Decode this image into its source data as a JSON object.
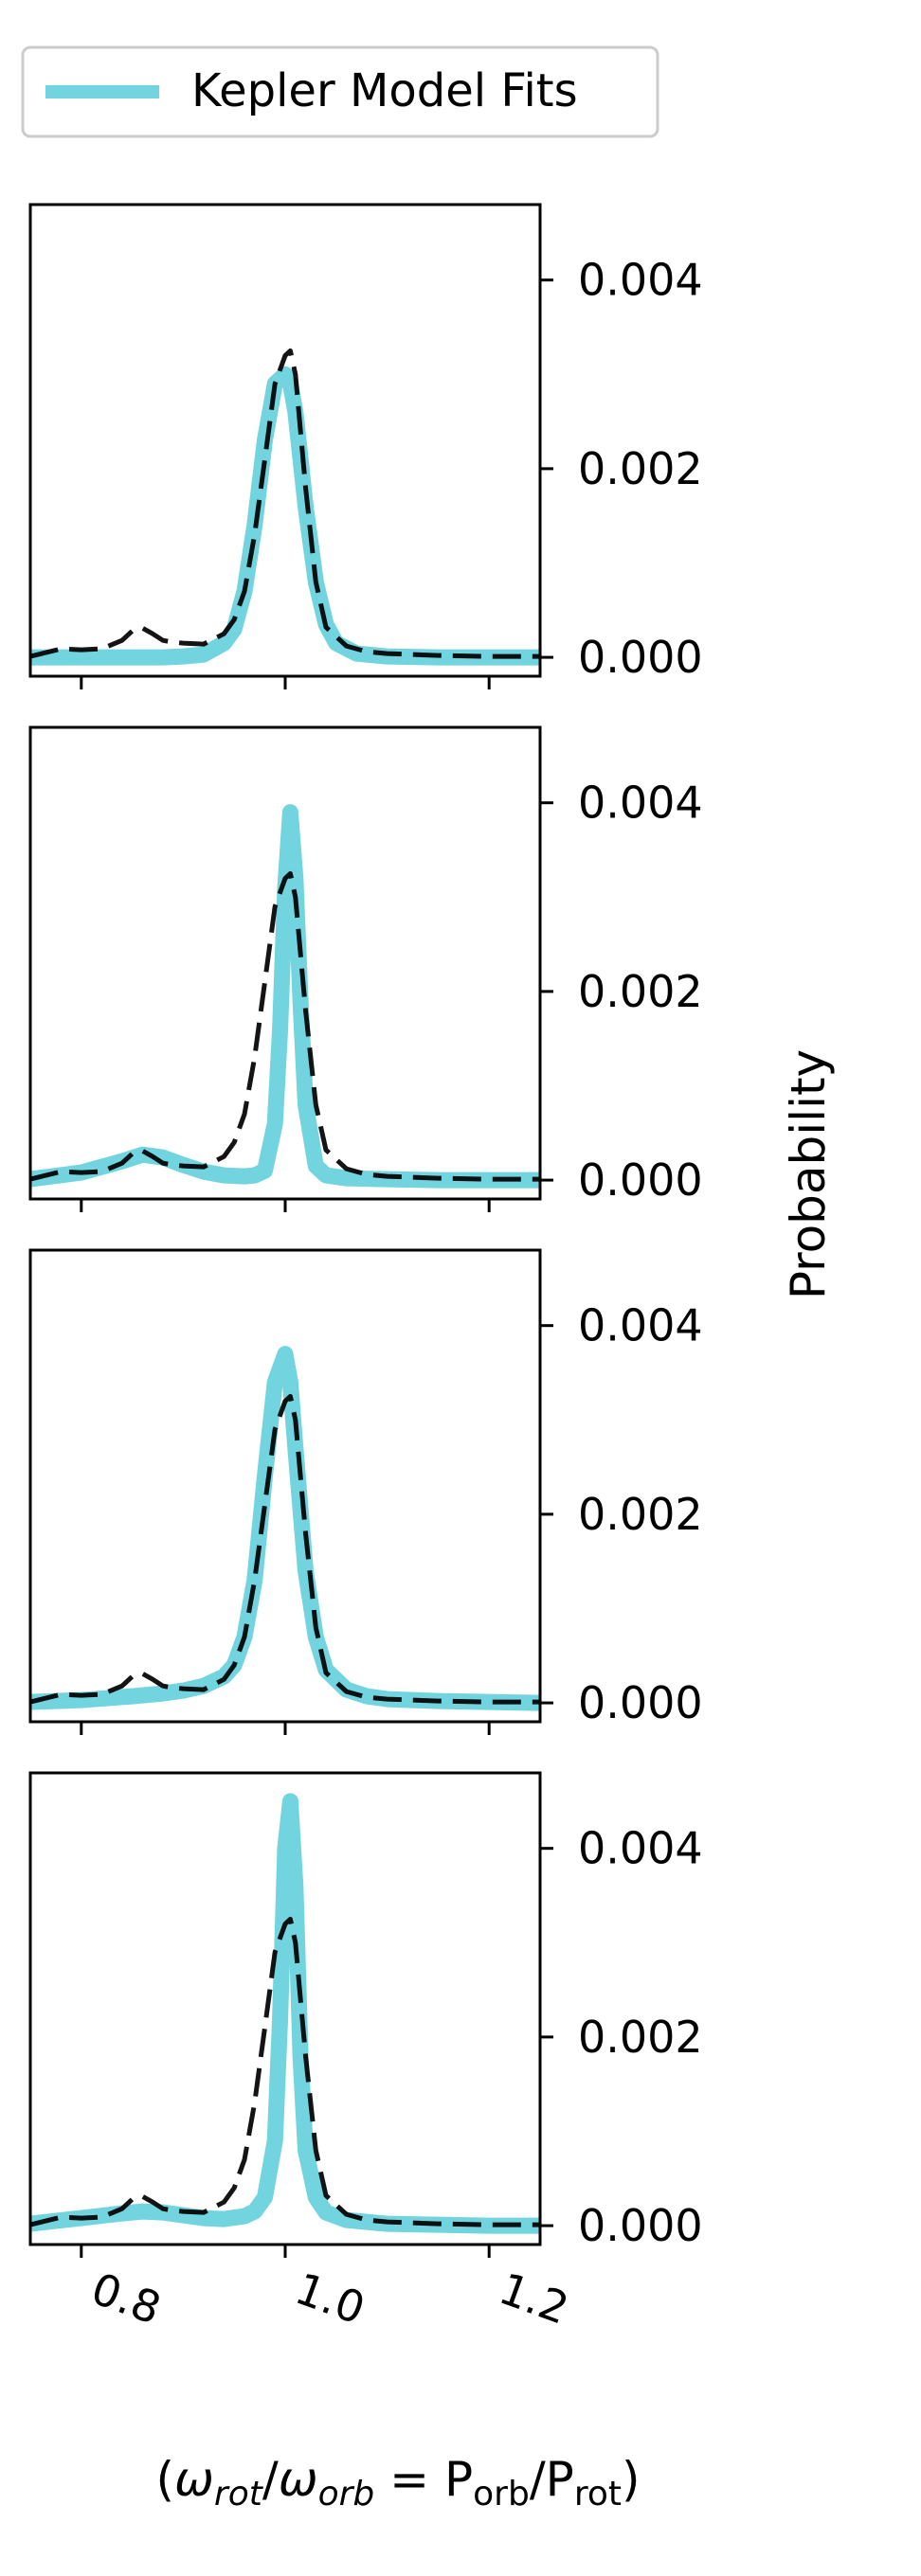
{
  "legend": {
    "label": "Kepler Model Fits"
  },
  "colors": {
    "fit": "#72d4df",
    "reference": "#000000",
    "overlap": "#0c5a62"
  },
  "chart_data": {
    "type": "line",
    "layout": "4 vertically stacked panels sharing x axis",
    "xlabel": "(ω_rot/ω_orb = P_orb/P_rot)",
    "ylabel": "Probability",
    "xlim": [
      0.75,
      1.25
    ],
    "ylim": [
      -0.0002,
      0.0048
    ],
    "x_ticks": [
      0.8,
      1.0,
      1.2
    ],
    "x_tick_labels": [
      "0.8",
      "1.0",
      "1.2"
    ],
    "y_ticks": [
      0.0,
      0.002,
      0.004
    ],
    "y_tick_labels": [
      "0.000",
      "0.002",
      "0.004"
    ],
    "y_axis_side": "right",
    "legend_position": "top-left",
    "grid": false,
    "reference_curve": {
      "style": "black dashed",
      "x": [
        0.75,
        0.78,
        0.8,
        0.82,
        0.84,
        0.85,
        0.86,
        0.87,
        0.88,
        0.89,
        0.9,
        0.92,
        0.94,
        0.95,
        0.96,
        0.97,
        0.98,
        0.99,
        1.0,
        1.005,
        1.01,
        1.02,
        1.03,
        1.04,
        1.06,
        1.08,
        1.1,
        1.15,
        1.2,
        1.25
      ],
      "values": [
        1e-05,
        9e-05,
        8e-05,
        9e-05,
        0.00018,
        0.00028,
        0.00031,
        0.00025,
        0.00018,
        0.00016,
        0.00015,
        0.00014,
        0.00025,
        0.0004,
        0.0007,
        0.0013,
        0.0021,
        0.0029,
        0.0032,
        0.00325,
        0.003,
        0.0018,
        0.0008,
        0.00032,
        0.00012,
        6e-05,
        4e-05,
        2e-05,
        1e-05,
        1e-05
      ]
    },
    "panels": [
      {
        "name": "panel-1",
        "fit_x": [
          0.75,
          0.8,
          0.85,
          0.88,
          0.9,
          0.92,
          0.94,
          0.95,
          0.96,
          0.97,
          0.98,
          0.99,
          1.0,
          1.005,
          1.01,
          1.02,
          1.03,
          1.04,
          1.05,
          1.07,
          1.1,
          1.15,
          1.2,
          1.25
        ],
        "fit_values": [
          0.0,
          0.0,
          0.0,
          0.0,
          1e-05,
          3e-05,
          0.00015,
          0.0003,
          0.0007,
          0.0014,
          0.0023,
          0.0029,
          0.003,
          0.0029,
          0.0026,
          0.0016,
          0.0008,
          0.00035,
          0.00015,
          4e-05,
          1e-05,
          0.0,
          0.0,
          0.0
        ]
      },
      {
        "name": "panel-2",
        "fit_x": [
          0.75,
          0.8,
          0.84,
          0.86,
          0.88,
          0.9,
          0.92,
          0.94,
          0.96,
          0.97,
          0.98,
          0.99,
          0.995,
          1.0,
          1.005,
          1.01,
          1.015,
          1.02,
          1.03,
          1.04,
          1.06,
          1.1,
          1.15,
          1.2,
          1.25
        ],
        "fit_values": [
          1e-05,
          8e-05,
          0.0002,
          0.00027,
          0.00024,
          0.00016,
          9e-05,
          5e-05,
          4e-05,
          5e-05,
          0.0001,
          0.0006,
          0.0016,
          0.0031,
          0.0039,
          0.0032,
          0.0019,
          0.0008,
          0.00015,
          5e-05,
          2e-05,
          1e-05,
          0.0,
          0.0,
          0.0
        ]
      },
      {
        "name": "panel-3",
        "fit_x": [
          0.75,
          0.8,
          0.85,
          0.88,
          0.9,
          0.92,
          0.94,
          0.95,
          0.96,
          0.97,
          0.98,
          0.99,
          1.0,
          1.005,
          1.01,
          1.02,
          1.03,
          1.04,
          1.06,
          1.08,
          1.1,
          1.15,
          1.2,
          1.25
        ],
        "fit_values": [
          1e-05,
          3e-05,
          7e-05,
          0.0001,
          0.00013,
          0.00018,
          0.00028,
          0.0004,
          0.0007,
          0.0013,
          0.0024,
          0.0034,
          0.0037,
          0.0034,
          0.0027,
          0.0014,
          0.0007,
          0.00035,
          0.00014,
          7e-05,
          4e-05,
          2e-05,
          1e-05,
          0.0
        ]
      },
      {
        "name": "panel-4",
        "fit_x": [
          0.75,
          0.8,
          0.84,
          0.86,
          0.88,
          0.9,
          0.92,
          0.94,
          0.96,
          0.97,
          0.98,
          0.99,
          0.995,
          1.0,
          1.005,
          1.01,
          1.015,
          1.02,
          1.03,
          1.04,
          1.06,
          1.1,
          1.15,
          1.2,
          1.25
        ],
        "fit_values": [
          2e-05,
          8e-05,
          0.00013,
          0.00015,
          0.00014,
          0.00011,
          8e-05,
          7e-05,
          0.0001,
          0.00015,
          0.0003,
          0.0009,
          0.0022,
          0.004,
          0.0045,
          0.0036,
          0.0018,
          0.0008,
          0.0003,
          0.00014,
          6e-05,
          2e-05,
          1e-05,
          0.0,
          0.0
        ]
      }
    ]
  }
}
